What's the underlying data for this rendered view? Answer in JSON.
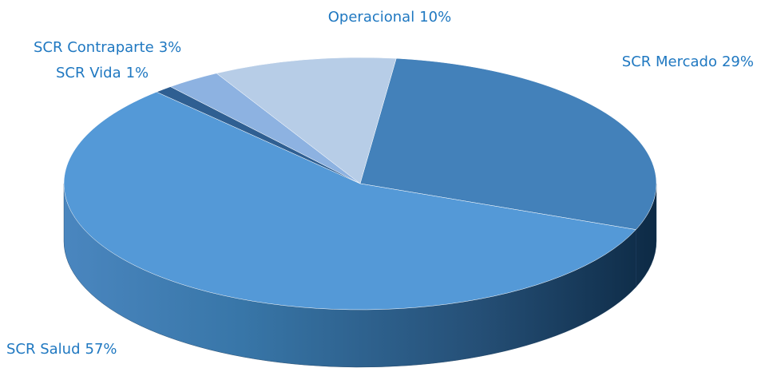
{
  "chart_data": {
    "type": "pie",
    "categories": [
      "SCR Mercado",
      "SCR Salud",
      "SCR Vida",
      "SCR Contraparte",
      "Operacional"
    ],
    "values": [
      29,
      57,
      1,
      3,
      10
    ],
    "value_labels": [
      "29%",
      "57%",
      "1%",
      "3%",
      "10%"
    ],
    "colors": [
      "#4381ba",
      "#5499d7",
      "#2f5f92",
      "#8db2e1",
      "#b7cde7"
    ]
  }
}
